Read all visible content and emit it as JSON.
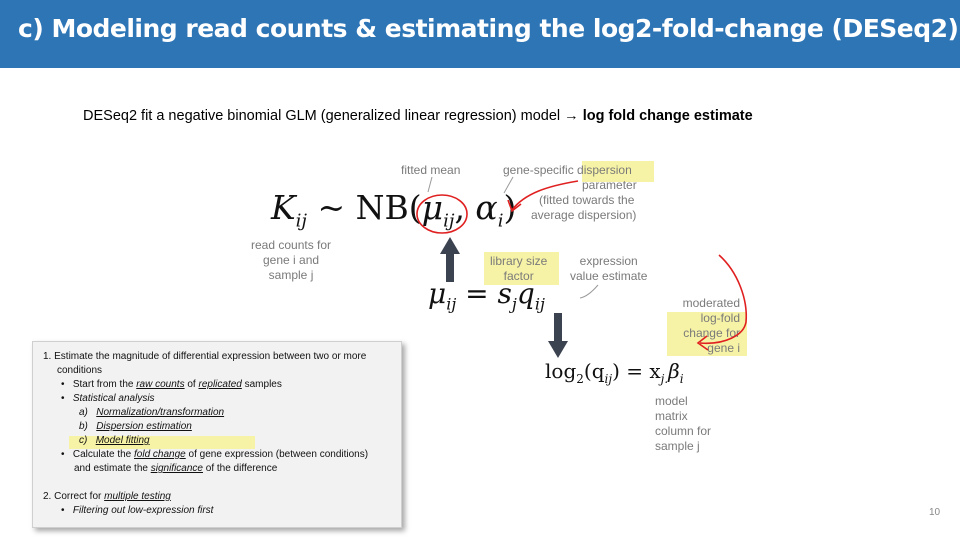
{
  "slide": {
    "title": "c) Modeling read counts & estimating the log2-fold-change (DESeq2)",
    "intro_text": "DESeq2 fit a negative binomial GLM (generalized linear regression) model ",
    "intro_arrow": "→",
    "intro_bold": "log fold change estimate",
    "page_number": "10"
  },
  "figure": {
    "eq_main_k": "K",
    "eq_main_k_sub": "ij",
    "eq_main_rest": " ~ NB(",
    "eq_mu": "μ",
    "eq_mu_sub": "ij",
    "eq_comma": ", ",
    "eq_alpha": "α",
    "eq_alpha_sub": "i",
    "eq_close": ")",
    "eq2_lhs": "μ",
    "eq2_lhs_sub": "ij",
    "eq2_mid": " = ",
    "eq2_s": "s",
    "eq2_s_sub": "j",
    "eq2_q": "q",
    "eq2_q_sub": "ij",
    "eq3_log": "log",
    "eq3_log_sub": "2",
    "eq3_arg": "(q",
    "eq3_arg_sub": "ij",
    "eq3_arg_close": ") = x",
    "eq3_x_sub": "j.",
    "eq3_beta": "β",
    "eq3_beta_sub": "i",
    "fitted_mean": "fitted mean",
    "dispersion_l1": "gene-specific dispersion",
    "dispersion_l2": "parameter",
    "dispersion_l3": "(fitted towards the",
    "dispersion_l4": "average dispersion)",
    "read_counts_l1": "read counts for",
    "read_counts_l2": "gene i and",
    "read_counts_l3": "sample j",
    "library_l1": "library size",
    "library_l2": "factor",
    "expression_l1": "expression",
    "expression_l2": "value estimate",
    "moderated_l1": "moderated",
    "moderated_l2": "log-fold",
    "moderated_l3": "change for",
    "moderated_l4": "gene i",
    "model_l1": "model",
    "model_l2": "matrix",
    "model_l3": "column for",
    "model_l4": "sample j"
  },
  "steps_box": {
    "l1": "1.  Estimate the magnitude of differential expression between two or more",
    "l2": "conditions",
    "l3a": "Start from the ",
    "l3b": "raw counts",
    "l3c": " of ",
    "l3d": "replicated",
    "l3e": " samples",
    "l4": "Statistical analysis",
    "l5a": "a)",
    "l5b": "Normalization/transformation",
    "l6a": "b)",
    "l6b": "Dispersion estimation",
    "l7a": "c)",
    "l7b": "Model fitting",
    "l8a": "Calculate the ",
    "l8b": "fold change",
    "l8c": " of gene expression (between conditions)",
    "l9a": "and estimate the ",
    "l9b": "significance",
    "l9c": " of the difference",
    "l10a": "2.  Correct for ",
    "l10b": "multiple testing",
    "l11": "Filtering out low-expression first",
    "bullet": "•"
  },
  "colors": {
    "banner": "#2e75b6",
    "highlight": "#f7f3a6",
    "annotation_red": "#e02020",
    "label_gray": "#7a7a7a"
  }
}
